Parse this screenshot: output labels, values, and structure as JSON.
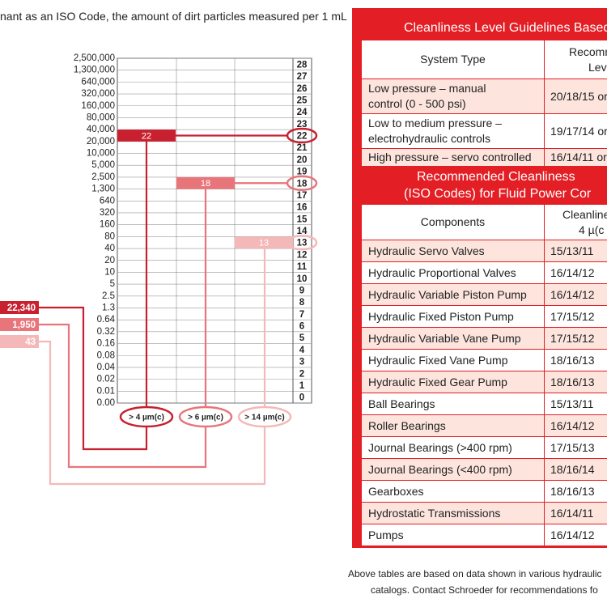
{
  "intro": "nant as an ISO Code, the amount of dirt particles measured per 1 mL",
  "scale": {
    "counts": [
      "2,500,000",
      "1,300,000",
      "640,000",
      "320,000",
      "160,000",
      "80,000",
      "40,000",
      "20,000",
      "10,000",
      "5,000",
      "2,500",
      "1,300",
      "640",
      "320",
      "160",
      "80",
      "40",
      "20",
      "10",
      "5",
      "2.5",
      "1.3",
      "0.64",
      "0.32",
      "0.16",
      "0.08",
      "0.04",
      "0.02",
      "0.01",
      "0.00"
    ],
    "codes": [
      "28",
      "27",
      "26",
      "25",
      "24",
      "23",
      "22",
      "21",
      "20",
      "19",
      "18",
      "17",
      "16",
      "15",
      "14",
      "13",
      "12",
      "11",
      "10",
      "9",
      "8",
      "7",
      "6",
      "5",
      "4",
      "3",
      "2",
      "1",
      "0"
    ]
  },
  "markers": [
    {
      "code": "22",
      "count": "22,340",
      "size": "> 4 µm(c)"
    },
    {
      "code": "18",
      "count": "1,950",
      "size": "> 6 µm(c)"
    },
    {
      "code": "13",
      "count": "43",
      "size": "> 14 µm(c)"
    }
  ],
  "guidelines": {
    "title": "Cleanliness Level Guidelines Based",
    "col1": "System Type",
    "col2": [
      "Recomm",
      "Lev"
    ],
    "rows": [
      {
        "type": [
          "Low pressure – manual",
          "control (0 - 500 psi)"
        ],
        "level": "20/18/15 or"
      },
      {
        "type": [
          "Low to medium pressure –",
          "electrohydraulic controls"
        ],
        "level": "19/17/14 or"
      },
      {
        "type": [
          "High pressure – servo controlled"
        ],
        "level": "16/14/11 or"
      }
    ]
  },
  "components": {
    "title": [
      "Recommended Cleanliness",
      "(ISO Codes) for Fluid Power Cor"
    ],
    "col1": "Components",
    "col2": [
      "Cleanline",
      "4 µ(c"
    ],
    "rows": [
      [
        "Hydraulic Servo Valves",
        "15/13/11"
      ],
      [
        "Hydraulic Proportional Valves",
        "16/14/12"
      ],
      [
        "Hydraulic Variable Piston Pump",
        "16/14/12"
      ],
      [
        "Hydraulic Fixed Piston Pump",
        "17/15/12"
      ],
      [
        "Hydraulic Variable Vane Pump",
        "17/15/12"
      ],
      [
        "Hydraulic Fixed Vane Pump",
        "18/16/13"
      ],
      [
        "Hydraulic Fixed Gear Pump",
        "18/16/13"
      ],
      [
        "Ball Bearings",
        "15/13/11"
      ],
      [
        "Roller Bearings",
        "16/14/12"
      ],
      [
        "Journal Bearings (>400 rpm)",
        "17/15/13"
      ],
      [
        "Journal Bearings (<400 rpm)",
        "18/16/14"
      ],
      [
        "Gearboxes",
        "18/16/13"
      ],
      [
        "Hydrostatic Transmissions",
        "16/14/11"
      ],
      [
        "Pumps",
        "16/14/12"
      ]
    ]
  },
  "footer": [
    "Above tables are based on data shown in various hydraulic",
    "catalogs. Contact Schroeder for recommendations fo"
  ]
}
